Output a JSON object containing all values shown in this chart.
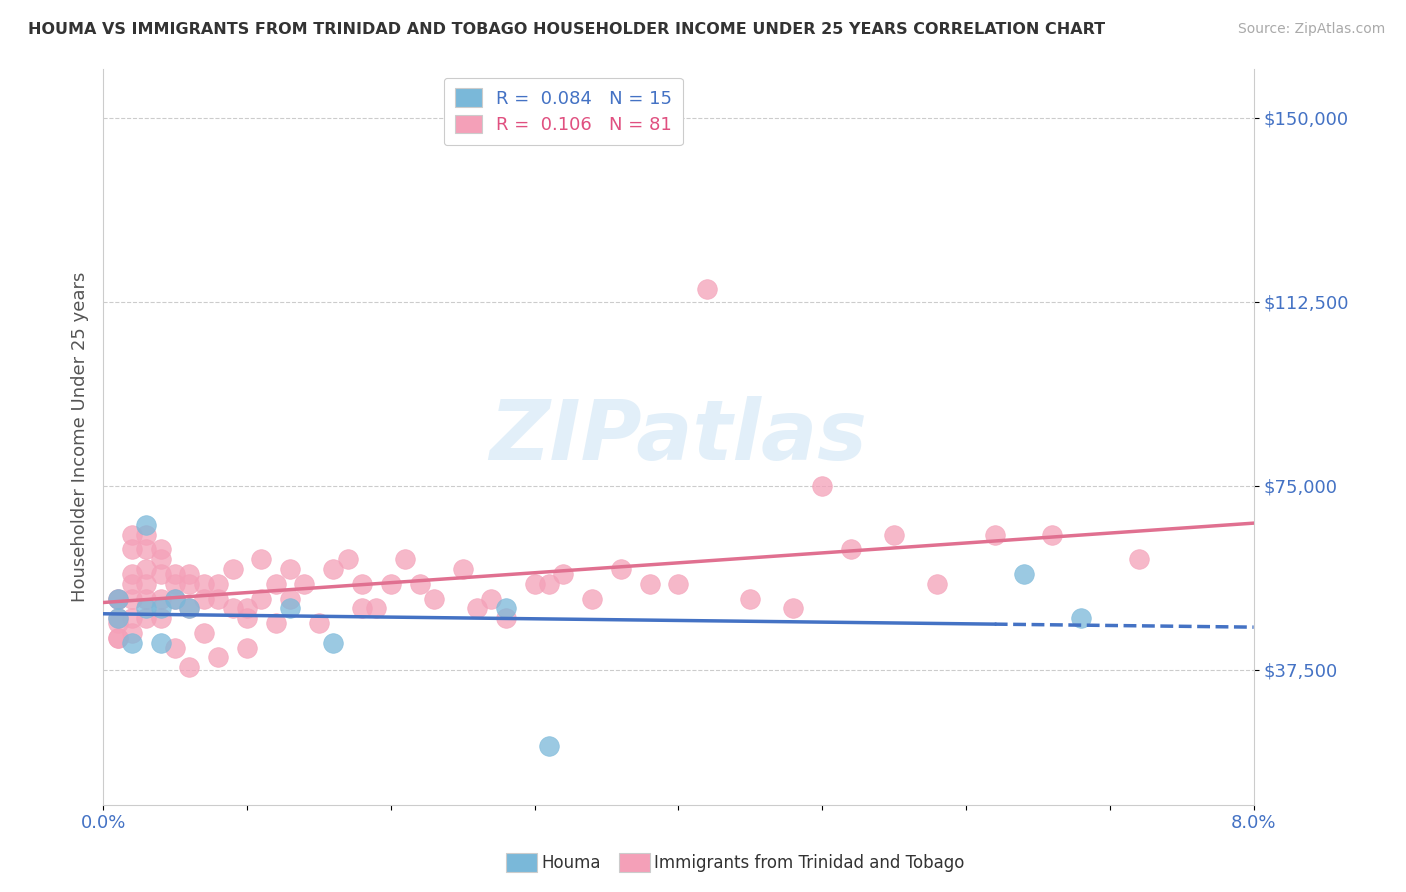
{
  "title": "HOUMA VS IMMIGRANTS FROM TRINIDAD AND TOBAGO HOUSEHOLDER INCOME UNDER 25 YEARS CORRELATION CHART",
  "source": "Source: ZipAtlas.com",
  "ylabel": "Householder Income Under 25 years",
  "xlim": [
    0.0,
    0.08
  ],
  "ylim": [
    10000,
    160000
  ],
  "yticks": [
    37500,
    75000,
    112500,
    150000
  ],
  "ytick_labels": [
    "$37,500",
    "$75,000",
    "$112,500",
    "$150,000"
  ],
  "background_color": "#ffffff",
  "houma_color": "#7ab8d9",
  "immigrant_color": "#f4a0b8",
  "houma_line_color": "#4472c4",
  "immigrant_line_color": "#e07090",
  "legend_r1": "0.084",
  "legend_n1": "15",
  "legend_r2": "0.106",
  "legend_n2": "81",
  "houma_x": [
    0.001,
    0.001,
    0.002,
    0.003,
    0.003,
    0.004,
    0.004,
    0.005,
    0.006,
    0.013,
    0.016,
    0.028,
    0.031,
    0.064,
    0.068
  ],
  "houma_y": [
    52000,
    48000,
    43000,
    67000,
    50000,
    50000,
    43000,
    52000,
    50000,
    50000,
    43000,
    50000,
    22000,
    57000,
    48000
  ],
  "imm_x": [
    0.001,
    0.001,
    0.001,
    0.001,
    0.001,
    0.001,
    0.002,
    0.002,
    0.002,
    0.002,
    0.002,
    0.002,
    0.002,
    0.003,
    0.003,
    0.003,
    0.003,
    0.003,
    0.003,
    0.004,
    0.004,
    0.004,
    0.004,
    0.004,
    0.005,
    0.005,
    0.005,
    0.005,
    0.006,
    0.006,
    0.006,
    0.006,
    0.007,
    0.007,
    0.007,
    0.008,
    0.008,
    0.008,
    0.009,
    0.009,
    0.01,
    0.01,
    0.01,
    0.011,
    0.011,
    0.012,
    0.012,
    0.013,
    0.013,
    0.014,
    0.015,
    0.016,
    0.017,
    0.018,
    0.018,
    0.019,
    0.02,
    0.021,
    0.022,
    0.023,
    0.025,
    0.026,
    0.027,
    0.028,
    0.03,
    0.031,
    0.032,
    0.034,
    0.036,
    0.038,
    0.04,
    0.042,
    0.045,
    0.048,
    0.05,
    0.052,
    0.055,
    0.058,
    0.062,
    0.066,
    0.072
  ],
  "imm_y": [
    52000,
    52000,
    48000,
    47000,
    44000,
    44000,
    65000,
    62000,
    57000,
    55000,
    52000,
    48000,
    45000,
    65000,
    62000,
    58000,
    55000,
    52000,
    48000,
    62000,
    60000,
    57000,
    52000,
    48000,
    57000,
    55000,
    52000,
    42000,
    57000,
    55000,
    50000,
    38000,
    55000,
    52000,
    45000,
    55000,
    52000,
    40000,
    58000,
    50000,
    50000,
    48000,
    42000,
    60000,
    52000,
    55000,
    47000,
    58000,
    52000,
    55000,
    47000,
    58000,
    60000,
    55000,
    50000,
    50000,
    55000,
    60000,
    55000,
    52000,
    58000,
    50000,
    52000,
    48000,
    55000,
    55000,
    57000,
    52000,
    58000,
    55000,
    55000,
    115000,
    52000,
    50000,
    75000,
    62000,
    65000,
    55000,
    65000,
    65000,
    60000
  ]
}
